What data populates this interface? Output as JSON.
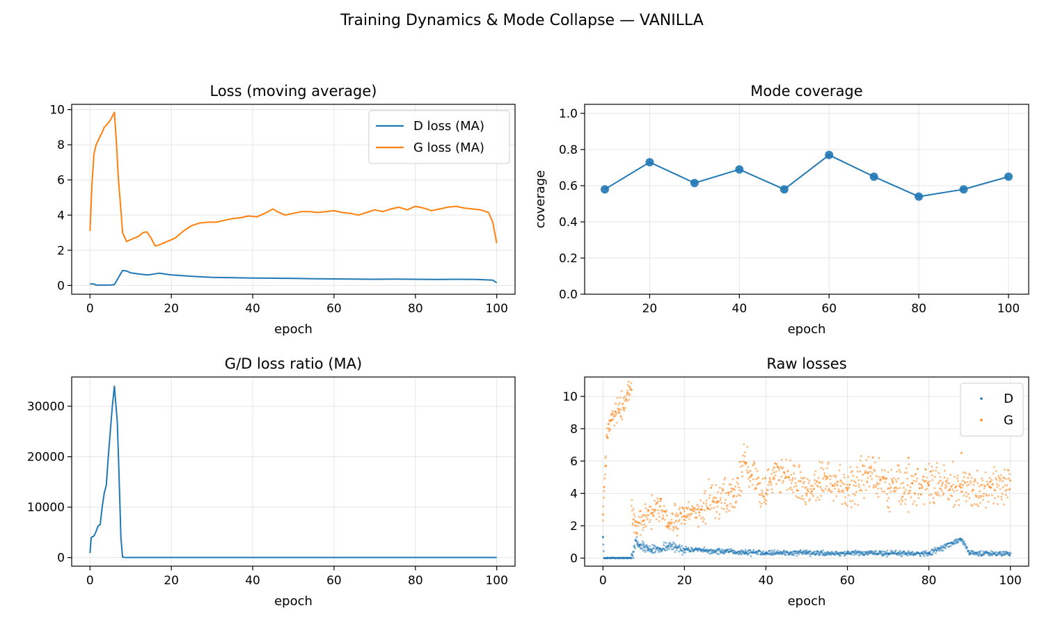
{
  "figure": {
    "suptitle": "Training Dynamics & Mode Collapse — VANILLA"
  },
  "colors": {
    "d": "#1f77b4",
    "g": "#ff7f0e",
    "grid": "#e5e5e5"
  },
  "chart_data": [
    {
      "id": "loss",
      "type": "line",
      "title": "Loss (moving average)",
      "xlabel": "epoch",
      "ylabel": "",
      "xlim": [
        -4.5,
        104.5
      ],
      "ylim": [
        -0.5,
        10.3
      ],
      "xticks": [
        0,
        20,
        40,
        60,
        80,
        100
      ],
      "yticks": [
        0,
        2,
        4,
        6,
        8,
        10
      ],
      "grid": true,
      "legend_position": "upper right",
      "series": [
        {
          "name": "D loss (MA)",
          "color": "#1f77b4",
          "x": [
            0,
            1,
            1.5,
            5,
            6,
            7,
            8,
            9,
            10,
            12,
            14,
            15,
            17,
            20,
            25,
            30,
            35,
            40,
            45,
            50,
            55,
            60,
            65,
            70,
            75,
            80,
            85,
            90,
            95,
            99,
            100
          ],
          "y": [
            0.08,
            0.08,
            0.02,
            0.02,
            0.05,
            0.45,
            0.85,
            0.82,
            0.72,
            0.65,
            0.6,
            0.62,
            0.7,
            0.6,
            0.52,
            0.46,
            0.44,
            0.42,
            0.41,
            0.4,
            0.38,
            0.37,
            0.36,
            0.35,
            0.36,
            0.35,
            0.34,
            0.35,
            0.34,
            0.3,
            0.15
          ]
        },
        {
          "name": "G loss (MA)",
          "color": "#ff7f0e",
          "x": [
            0,
            0.5,
            1,
            1.5,
            2,
            3,
            3.5,
            4,
            5,
            6,
            6.5,
            7,
            7.5,
            8,
            9,
            10,
            12,
            13,
            14,
            15,
            16,
            17,
            19,
            21,
            23,
            25,
            27,
            29,
            31,
            33,
            35,
            37,
            39,
            41,
            43,
            45,
            46,
            48,
            50,
            52,
            54,
            56,
            58,
            60,
            62,
            64,
            66,
            68,
            70,
            72,
            74,
            76,
            78,
            80,
            82,
            84,
            86,
            88,
            90,
            92,
            94,
            96,
            98,
            99,
            100
          ],
          "y": [
            3.1,
            5.8,
            7.5,
            8.0,
            8.25,
            8.7,
            9.0,
            9.1,
            9.4,
            9.85,
            8.1,
            6.0,
            4.6,
            3.0,
            2.5,
            2.6,
            2.8,
            3.0,
            3.05,
            2.7,
            2.25,
            2.3,
            2.5,
            2.7,
            3.1,
            3.4,
            3.55,
            3.6,
            3.6,
            3.7,
            3.8,
            3.85,
            3.95,
            3.9,
            4.1,
            4.35,
            4.2,
            4.0,
            4.1,
            4.2,
            4.2,
            4.15,
            4.2,
            4.25,
            4.15,
            4.1,
            4.0,
            4.15,
            4.3,
            4.2,
            4.35,
            4.45,
            4.3,
            4.5,
            4.4,
            4.25,
            4.35,
            4.45,
            4.5,
            4.4,
            4.35,
            4.3,
            4.15,
            3.6,
            2.4
          ]
        }
      ]
    },
    {
      "id": "coverage",
      "type": "line",
      "title": "Mode coverage",
      "xlabel": "epoch",
      "ylabel": "coverage",
      "xlim": [
        5.5,
        104.5
      ],
      "ylim": [
        0.0,
        1.05
      ],
      "xticks": [
        20,
        40,
        60,
        80,
        100
      ],
      "yticks": [
        0.0,
        0.2,
        0.4,
        0.6,
        0.8,
        1.0
      ],
      "grid": true,
      "markers": true,
      "series": [
        {
          "color": "#1f77b4",
          "x": [
            10,
            20,
            30,
            40,
            50,
            60,
            70,
            80,
            90,
            100
          ],
          "y": [
            0.58,
            0.73,
            0.615,
            0.69,
            0.58,
            0.77,
            0.65,
            0.54,
            0.58,
            0.65
          ]
        }
      ]
    },
    {
      "id": "ratio",
      "type": "line",
      "title": "G/D loss ratio (MA)",
      "xlabel": "epoch",
      "ylabel": "",
      "xlim": [
        -4.5,
        104.5
      ],
      "ylim": [
        -1700,
        35800
      ],
      "xticks": [
        0,
        20,
        40,
        60,
        80,
        100
      ],
      "yticks": [
        0,
        10000,
        20000,
        30000
      ],
      "grid": true,
      "series": [
        {
          "color": "#1f77b4",
          "x": [
            0,
            0.3,
            1,
            1.5,
            2,
            2.5,
            3,
            3.5,
            4,
            4.5,
            5,
            5.5,
            6,
            6.3,
            6.7,
            7,
            7.3,
            7.6,
            8,
            8.5,
            100
          ],
          "y": [
            900,
            4000,
            4300,
            5200,
            6300,
            6500,
            10000,
            12800,
            14300,
            20000,
            25000,
            30000,
            34000,
            31000,
            27000,
            20000,
            12000,
            4000,
            100,
            30,
            30
          ]
        }
      ]
    },
    {
      "id": "raw",
      "type": "scatter",
      "title": "Raw losses",
      "xlabel": "epoch",
      "ylabel": "",
      "xlim": [
        -4.5,
        104.5
      ],
      "ylim": [
        -0.5,
        11.2
      ],
      "xticks": [
        0,
        20,
        40,
        60,
        80,
        100
      ],
      "yticks": [
        0,
        2,
        4,
        6,
        8,
        10
      ],
      "grid": true,
      "legend_position": "upper right",
      "series": [
        {
          "name": "D",
          "color": "#1f77b4",
          "points": [
            [
              0,
              1.3
            ],
            [
              0.3,
              0.0
            ],
            [
              1,
              0.0
            ],
            [
              2,
              0.0
            ],
            [
              3,
              0.0
            ],
            [
              4,
              0.0
            ],
            [
              5,
              0.0
            ],
            [
              6,
              0.0
            ],
            [
              7,
              0.0
            ],
            [
              7.5,
              0.4
            ],
            [
              8,
              1.1
            ],
            [
              8.5,
              0.9
            ],
            [
              9,
              0.8
            ],
            [
              10,
              0.7
            ],
            [
              11,
              0.6
            ],
            [
              12,
              0.5
            ],
            [
              14,
              0.6
            ],
            [
              16,
              0.75
            ],
            [
              18,
              0.65
            ],
            [
              20,
              0.55
            ],
            [
              25,
              0.45
            ],
            [
              30,
              0.4
            ],
            [
              35,
              0.35
            ],
            [
              40,
              0.35
            ],
            [
              50,
              0.3
            ],
            [
              60,
              0.3
            ],
            [
              70,
              0.3
            ],
            [
              80,
              0.3
            ],
            [
              88,
              1.15
            ],
            [
              90,
              0.3
            ],
            [
              100,
              0.3
            ]
          ]
        },
        {
          "name": "G",
          "color": "#ff7f0e",
          "points": [
            [
              0,
              2.7
            ],
            [
              0.3,
              4.4
            ],
            [
              0.6,
              5.7
            ],
            [
              1,
              7.5
            ],
            [
              1.5,
              8.0
            ],
            [
              2,
              8.5
            ],
            [
              3,
              8.8
            ],
            [
              4,
              9.2
            ],
            [
              5,
              9.3
            ],
            [
              6,
              10.2
            ],
            [
              6.5,
              10.6
            ],
            [
              7,
              10.4
            ],
            [
              7.5,
              2.4
            ],
            [
              8,
              2.0
            ],
            [
              10,
              2.3
            ],
            [
              12,
              2.8
            ],
            [
              14,
              3.2
            ],
            [
              16,
              2.0
            ],
            [
              18,
              2.3
            ],
            [
              20,
              2.6
            ],
            [
              24,
              3.0
            ],
            [
              28,
              3.5
            ],
            [
              32,
              3.8
            ],
            [
              35,
              5.9
            ],
            [
              40,
              4.0
            ],
            [
              42,
              5.6
            ],
            [
              50,
              4.0
            ],
            [
              55,
              5.0
            ],
            [
              60,
              4.2
            ],
            [
              65,
              5.3
            ],
            [
              70,
              4.3
            ],
            [
              75,
              6.2
            ],
            [
              80,
              4.5
            ],
            [
              88,
              6.5
            ],
            [
              95,
              4.4
            ],
            [
              100,
              4.8
            ]
          ]
        }
      ]
    }
  ]
}
